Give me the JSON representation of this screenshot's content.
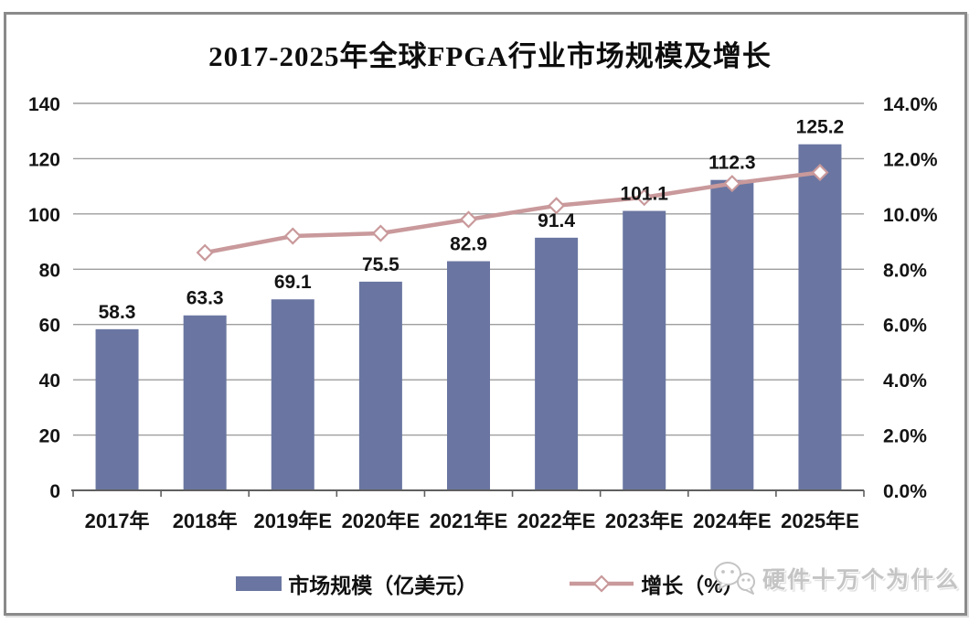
{
  "chart_data": {
    "type": "bar+line",
    "title": "2017-2025年全球FPGA行业市场规模及增长",
    "categories": [
      "2017年",
      "2018年",
      "2019年E",
      "2020年E",
      "2021年E",
      "2022年E",
      "2023年E",
      "2024年E",
      "2025年E"
    ],
    "series": [
      {
        "name": "市场规模（亿美元）",
        "chart_type": "bar",
        "axis": "left",
        "color": "#6A76A1",
        "values": [
          58.3,
          63.3,
          69.1,
          75.5,
          82.9,
          91.4,
          101.1,
          112.3,
          125.2
        ],
        "data_labels": [
          "58.3",
          "63.3",
          "69.1",
          "75.5",
          "82.9",
          "91.4",
          "101.1",
          "112.3",
          "125.2"
        ]
      },
      {
        "name": "增长（%）",
        "chart_type": "line",
        "axis": "right",
        "color": "#C9999B",
        "marker": "open-diamond",
        "values": [
          null,
          8.6,
          9.2,
          9.3,
          9.8,
          10.3,
          10.6,
          11.1,
          11.5
        ]
      }
    ],
    "left_axis": {
      "min": 0,
      "max": 140,
      "step": 20,
      "ticks": [
        "0",
        "20",
        "40",
        "60",
        "80",
        "100",
        "120",
        "140"
      ]
    },
    "right_axis": {
      "min": 0,
      "max": 14,
      "step": 2,
      "ticks": [
        "0.0%",
        "2.0%",
        "4.0%",
        "6.0%",
        "8.0%",
        "10.0%",
        "12.0%",
        "14.0%"
      ]
    },
    "grid": true,
    "legend_position": "bottom"
  },
  "watermark": {
    "text": "硬件十万个为什么",
    "icon": "chat-bubbles-face-icon"
  },
  "colors": {
    "bar": "#6A76A1",
    "line": "#C9999B",
    "grid": "#9E9E9E",
    "axis": "#5F5F5F",
    "text": "#141414",
    "frame_border": "#8A8A8A",
    "watermark": "#C4C4C4",
    "background": "#FFFFFF"
  }
}
